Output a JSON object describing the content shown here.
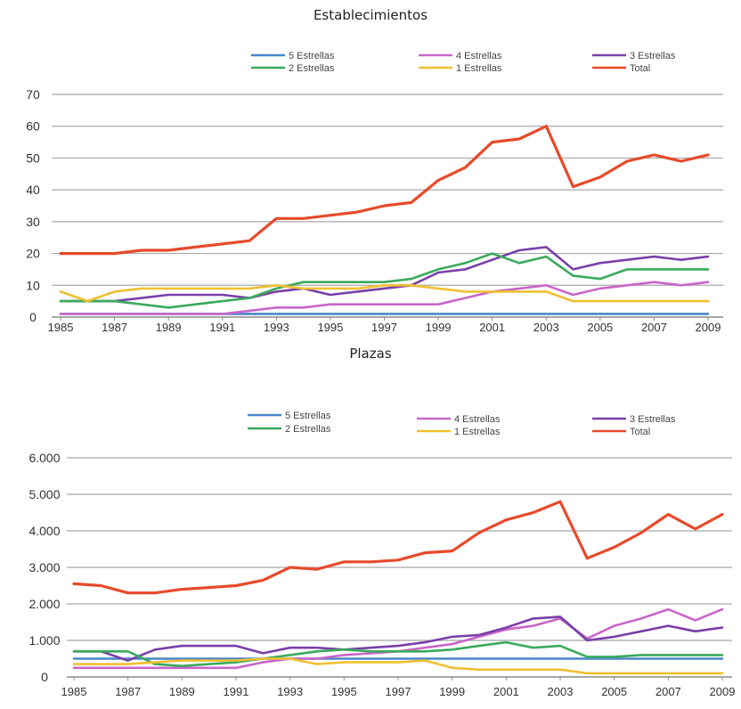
{
  "chart_data": [
    {
      "type": "line",
      "title": "Establecimientos",
      "xlabel": "",
      "ylabel": "",
      "x": [
        1985,
        1986,
        1987,
        1988,
        1989,
        1990,
        1991,
        1992,
        1993,
        1994,
        1995,
        1996,
        1997,
        1998,
        1999,
        2000,
        2001,
        2002,
        2003,
        2004,
        2005,
        2006,
        2007,
        2008,
        2009
      ],
      "x_ticks": [
        "1985",
        "1987",
        "1989",
        "1991",
        "1993",
        "1995",
        "1997",
        "1999",
        "2001",
        "2003",
        "2005",
        "2007",
        "2009"
      ],
      "y_ticks": [
        "0",
        "10",
        "20",
        "30",
        "40",
        "50",
        "60",
        "70"
      ],
      "ylim": [
        0,
        70
      ],
      "grid": true,
      "legend_position": "top",
      "series": [
        {
          "name": "5 Estrellas",
          "color": "#4a86c8",
          "values": [
            1,
            1,
            1,
            1,
            1,
            1,
            1,
            1,
            1,
            1,
            1,
            1,
            1,
            1,
            1,
            1,
            1,
            1,
            1,
            1,
            1,
            1,
            1,
            1,
            1
          ]
        },
        {
          "name": "4 Estrellas",
          "color": "#c866c8",
          "values": [
            1,
            1,
            1,
            1,
            1,
            1,
            1,
            2,
            3,
            3,
            4,
            4,
            4,
            4,
            4,
            6,
            8,
            9,
            10,
            7,
            9,
            10,
            11,
            10,
            11
          ]
        },
        {
          "name": "3 Estrellas",
          "color": "#7a3fa8",
          "values": [
            5,
            5,
            5,
            6,
            7,
            7,
            7,
            6,
            8,
            9,
            7,
            8,
            9,
            10,
            14,
            15,
            18,
            21,
            22,
            15,
            17,
            18,
            19,
            18,
            19
          ]
        },
        {
          "name": "2 Estrellas",
          "color": "#3aaa5c",
          "values": [
            5,
            5,
            5,
            4,
            3,
            4,
            5,
            6,
            9,
            11,
            11,
            11,
            11,
            12,
            15,
            17,
            20,
            17,
            19,
            13,
            12,
            15,
            15,
            15,
            15
          ]
        },
        {
          "name": "1 Estrellas",
          "color": "#f0c030",
          "values": [
            8,
            5,
            8,
            9,
            9,
            9,
            9,
            9,
            10,
            9,
            9,
            9,
            10,
            10,
            9,
            8,
            8,
            8,
            8,
            5,
            5,
            5,
            5,
            5,
            5
          ]
        },
        {
          "name": "Total",
          "color": "#e84a2a",
          "values": [
            20,
            20,
            20,
            21,
            21,
            22,
            23,
            24,
            31,
            31,
            32,
            33,
            35,
            36,
            43,
            47,
            55,
            56,
            60,
            41,
            44,
            49,
            51,
            49,
            51
          ]
        }
      ]
    },
    {
      "type": "line",
      "title": "Plazas",
      "xlabel": "",
      "ylabel": "",
      "x": [
        1985,
        1986,
        1987,
        1988,
        1989,
        1990,
        1991,
        1992,
        1993,
        1994,
        1995,
        1996,
        1997,
        1998,
        1999,
        2000,
        2001,
        2002,
        2003,
        2004,
        2005,
        2006,
        2007,
        2008,
        2009
      ],
      "x_ticks": [
        "1985",
        "1987",
        "1989",
        "1991",
        "1993",
        "1995",
        "1997",
        "1999",
        "2001",
        "2003",
        "2005",
        "2007",
        "2009"
      ],
      "y_ticks": [
        "0",
        "1.000",
        "2.000",
        "3.000",
        "4.000",
        "5.000",
        "6.000"
      ],
      "ylim": [
        0,
        6000
      ],
      "grid": true,
      "legend_position": "top",
      "series": [
        {
          "name": "5 Estrellas",
          "color": "#4a86c8",
          "values": [
            500,
            500,
            500,
            500,
            500,
            500,
            500,
            500,
            500,
            500,
            500,
            500,
            500,
            500,
            500,
            500,
            500,
            500,
            500,
            500,
            500,
            500,
            500,
            500,
            500
          ]
        },
        {
          "name": "4 Estrellas",
          "color": "#c866c8",
          "values": [
            250,
            250,
            250,
            250,
            250,
            250,
            250,
            400,
            500,
            500,
            600,
            650,
            700,
            800,
            900,
            1100,
            1300,
            1400,
            1600,
            1050,
            1400,
            1600,
            1850,
            1550,
            1850
          ]
        },
        {
          "name": "3 Estrellas",
          "color": "#7a3fa8",
          "values": [
            700,
            700,
            450,
            750,
            850,
            850,
            850,
            650,
            800,
            800,
            750,
            800,
            850,
            950,
            1100,
            1150,
            1350,
            1600,
            1650,
            1000,
            1100,
            1250,
            1400,
            1250,
            1350
          ]
        },
        {
          "name": "2 Estrellas",
          "color": "#3aaa5c",
          "values": [
            700,
            700,
            700,
            350,
            300,
            350,
            400,
            500,
            600,
            700,
            750,
            700,
            700,
            700,
            750,
            850,
            950,
            800,
            850,
            550,
            550,
            600,
            600,
            600,
            600
          ]
        },
        {
          "name": "1 Estrellas",
          "color": "#f0c030",
          "values": [
            350,
            350,
            350,
            400,
            450,
            450,
            450,
            500,
            500,
            350,
            400,
            400,
            400,
            450,
            250,
            200,
            200,
            200,
            200,
            100,
            100,
            100,
            100,
            100,
            100
          ]
        },
        {
          "name": "Total",
          "color": "#e84a2a",
          "values": [
            2550,
            2500,
            2300,
            2300,
            2400,
            2450,
            2500,
            2650,
            3000,
            2950,
            3150,
            3150,
            3200,
            3400,
            3450,
            3950,
            4300,
            4500,
            4800,
            3250,
            3550,
            3950,
            4450,
            4050,
            4450
          ]
        }
      ]
    }
  ]
}
